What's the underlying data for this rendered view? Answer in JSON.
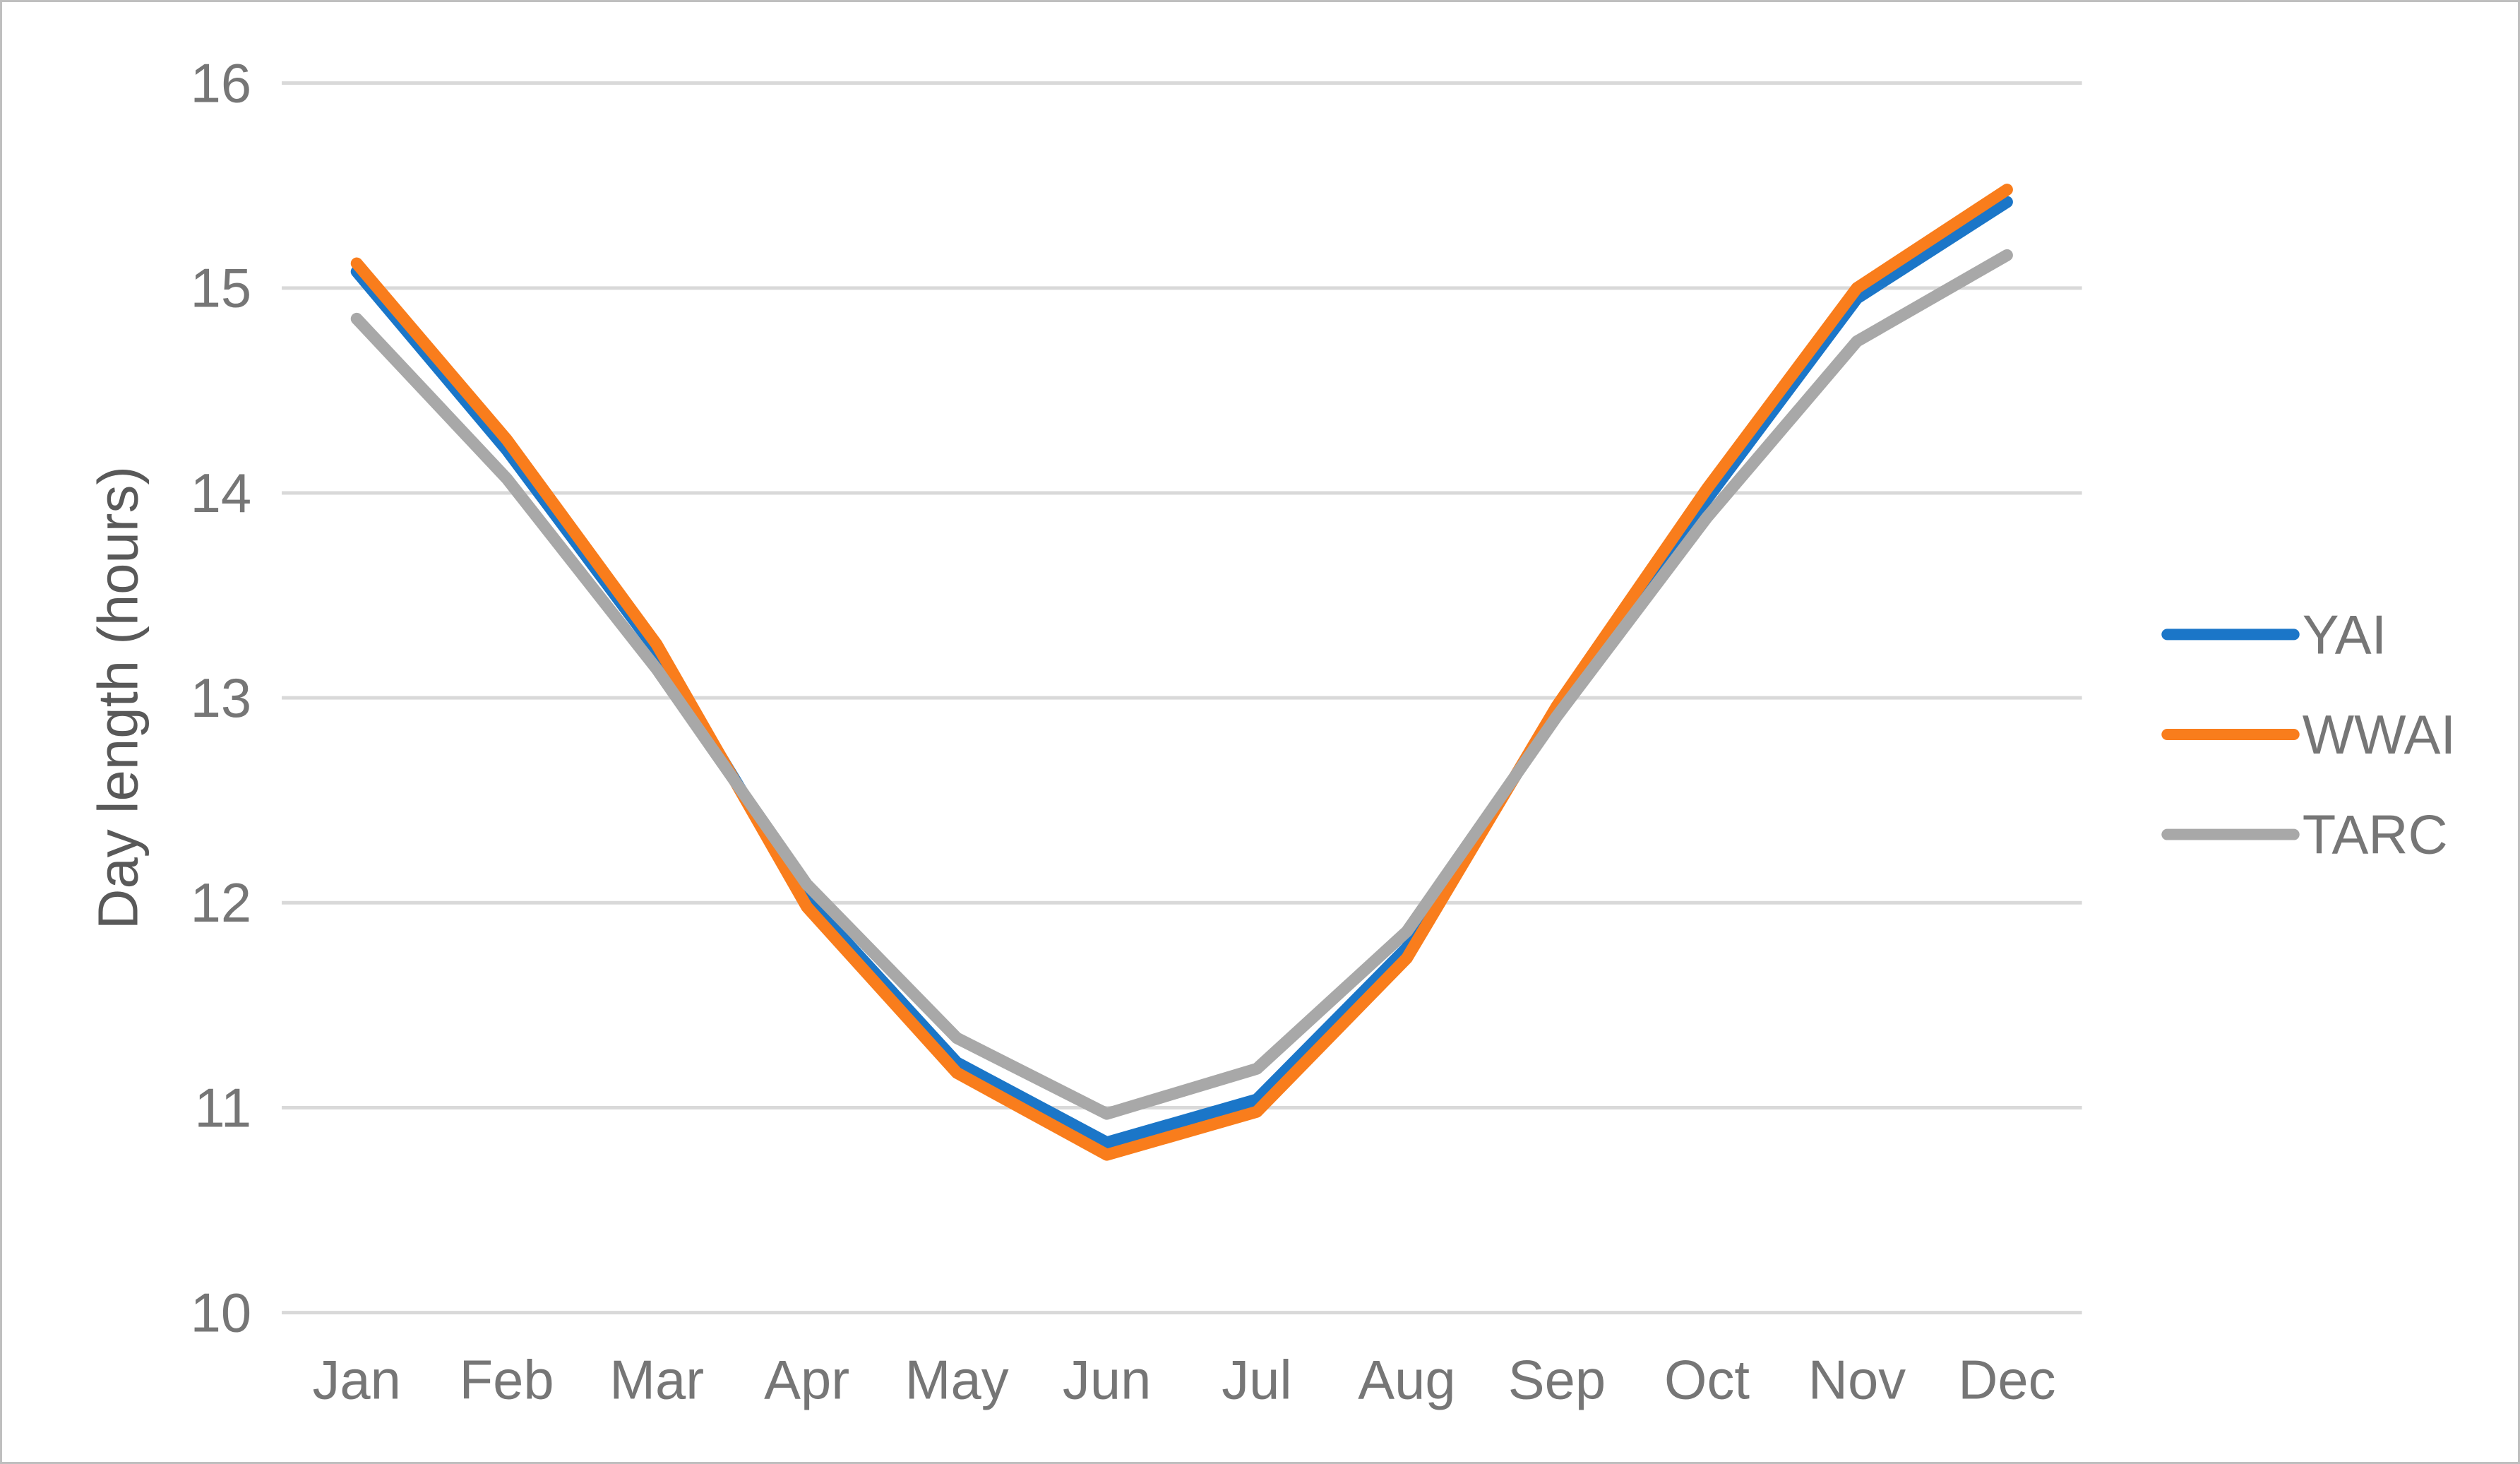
{
  "figure": {
    "background_color": "#FFFFFF",
    "border_color": "#BFBFBF"
  },
  "chart_data": {
    "type": "line",
    "title": "",
    "xlabel": "",
    "ylabel": "Day length (hours)",
    "categories": [
      "Jan",
      "Feb",
      "Mar",
      "Apr",
      "May",
      "Jun",
      "Jul",
      "Aug",
      "Sep",
      "Oct",
      "Nov",
      "Dec"
    ],
    "series": [
      {
        "name": "YAI",
        "color": "#1B76C8",
        "values": [
          15.08,
          14.21,
          13.23,
          12.02,
          11.22,
          10.83,
          11.04,
          11.78,
          12.94,
          13.97,
          14.95,
          15.42
        ]
      },
      {
        "name": "WWAI",
        "color": "#F97D1C",
        "values": [
          15.12,
          14.26,
          13.26,
          11.98,
          11.17,
          10.77,
          10.98,
          11.73,
          12.96,
          14.02,
          15.0,
          15.48
        ]
      },
      {
        "name": "TARC",
        "color": "#A8A8A8",
        "values": [
          14.85,
          14.07,
          13.14,
          12.09,
          11.34,
          10.97,
          11.19,
          11.86,
          12.91,
          13.88,
          14.74,
          15.16
        ]
      }
    ],
    "ylim": [
      10,
      16
    ],
    "yticks": [
      10,
      11,
      12,
      13,
      14,
      15,
      16
    ],
    "grid": true,
    "legend_position": "right",
    "gridline_color": "#D9D9D9",
    "tick_label_color": "#767676",
    "axis_title_color": "#595959",
    "legend_text_color": "#767676"
  }
}
